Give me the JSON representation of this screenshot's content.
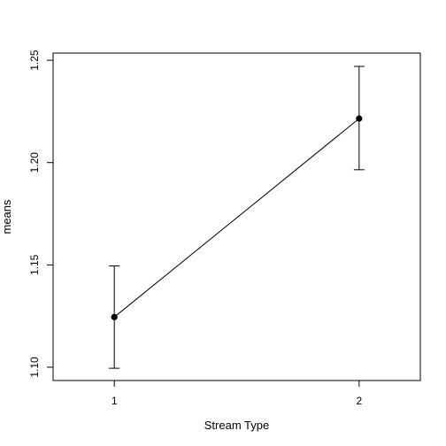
{
  "chart_data": {
    "type": "line",
    "title": "",
    "xlabel": "Stream Type",
    "ylabel": "means",
    "x_ticks": [
      "1",
      "2"
    ],
    "y_ticks": [
      "1.10",
      "1.15",
      "1.20",
      "1.25"
    ],
    "x": [
      1,
      2
    ],
    "xlim": [
      0.75,
      2.25
    ],
    "ylim": [
      1.0935,
      1.2535
    ],
    "grid": false,
    "series": [
      {
        "values": [
          1.1245,
          1.2215
        ],
        "error_lower": [
          1.0995,
          1.1965
        ],
        "error_upper": [
          1.1495,
          1.247
        ]
      }
    ]
  }
}
